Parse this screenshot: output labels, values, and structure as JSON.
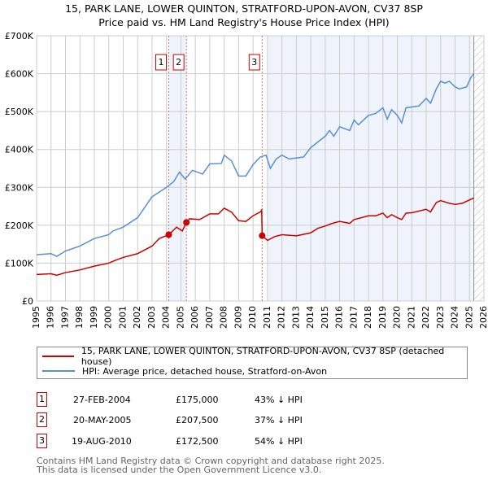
{
  "chart_data": {
    "type": "line",
    "title": "15, PARK LANE, LOWER QUINTON, STRATFORD-UPON-AVON, CV37 8SP",
    "subtitle": "Price paid vs. HM Land Registry's House Price Index (HPI)",
    "xlim": [
      1995,
      2026
    ],
    "ylim": [
      0,
      700000
    ],
    "x_ticks": [
      "1995",
      "1996",
      "1997",
      "1998",
      "1999",
      "2000",
      "2001",
      "2002",
      "2003",
      "2004",
      "2005",
      "2006",
      "2007",
      "2008",
      "2009",
      "2010",
      "2011",
      "2012",
      "2013",
      "2014",
      "2015",
      "2016",
      "2017",
      "2018",
      "2019",
      "2020",
      "2021",
      "2022",
      "2023",
      "2024",
      "2025",
      "2026"
    ],
    "y_ticks": [
      {
        "v": 0,
        "label": "£0"
      },
      {
        "v": 100000,
        "label": "£100K"
      },
      {
        "v": 200000,
        "label": "£200K"
      },
      {
        "v": 300000,
        "label": "£300K"
      },
      {
        "v": 400000,
        "label": "£400K"
      },
      {
        "v": 500000,
        "label": "£500K"
      },
      {
        "v": 600000,
        "label": "£600K"
      },
      {
        "v": 700000,
        "label": "£700K"
      }
    ],
    "grid": true,
    "series": [
      {
        "name": "15, PARK LANE, LOWER QUINTON, STRATFORD-UPON-AVON, CV37 8SP (detached house)",
        "color": "#cc0000",
        "points": [
          [
            1995,
            70
          ],
          [
            1996,
            72
          ],
          [
            1996.4,
            68
          ],
          [
            1997,
            75
          ],
          [
            1998,
            82
          ],
          [
            1999,
            92
          ],
          [
            2000,
            100
          ],
          [
            2000.5,
            108
          ],
          [
            2001,
            115
          ],
          [
            2002,
            125
          ],
          [
            2003,
            145
          ],
          [
            2003.5,
            165
          ],
          [
            2004.16,
            175
          ],
          [
            2004.7,
            195
          ],
          [
            2005.1,
            185
          ],
          [
            2005.38,
            207.5
          ],
          [
            2005.6,
            217
          ],
          [
            2006.3,
            215
          ],
          [
            2007,
            230
          ],
          [
            2007.6,
            230
          ],
          [
            2008,
            245
          ],
          [
            2008.5,
            235
          ],
          [
            2009,
            212
          ],
          [
            2009.5,
            210
          ],
          [
            2010,
            225
          ],
          [
            2010.5,
            235
          ],
          [
            2010.6,
            240
          ],
          [
            2010.63,
            172.5
          ],
          [
            2011,
            160
          ],
          [
            2011.5,
            170
          ],
          [
            2012,
            175
          ],
          [
            2013,
            172
          ],
          [
            2014,
            180
          ],
          [
            2014.5,
            192
          ],
          [
            2015,
            198
          ],
          [
            2015.5,
            205
          ],
          [
            2016,
            210
          ],
          [
            2016.7,
            205
          ],
          [
            2017,
            215
          ],
          [
            2018,
            225
          ],
          [
            2018.5,
            225
          ],
          [
            2019,
            232
          ],
          [
            2019.3,
            220
          ],
          [
            2019.6,
            228
          ],
          [
            2020,
            220
          ],
          [
            2020.3,
            215
          ],
          [
            2020.6,
            232
          ],
          [
            2021,
            233
          ],
          [
            2022,
            242
          ],
          [
            2022.3,
            235
          ],
          [
            2022.7,
            260
          ],
          [
            2023,
            265
          ],
          [
            2023.6,
            258
          ],
          [
            2024,
            255
          ],
          [
            2024.5,
            258
          ],
          [
            2025.3,
            272
          ]
        ]
      },
      {
        "name": "HPI: Average price, detached house, Stratford-on-Avon",
        "color": "#5b8fd0",
        "points": [
          [
            1995,
            122
          ],
          [
            1996,
            125
          ],
          [
            1996.4,
            118
          ],
          [
            1997,
            132
          ],
          [
            1998,
            145
          ],
          [
            1999,
            165
          ],
          [
            2000,
            175
          ],
          [
            2000.3,
            185
          ],
          [
            2001,
            195
          ],
          [
            2002,
            220
          ],
          [
            2003,
            275
          ],
          [
            2004,
            300
          ],
          [
            2004.5,
            315
          ],
          [
            2004.9,
            340
          ],
          [
            2005.3,
            322
          ],
          [
            2005.8,
            345
          ],
          [
            2006.5,
            335
          ],
          [
            2007,
            362
          ],
          [
            2007.8,
            363
          ],
          [
            2008,
            385
          ],
          [
            2008.5,
            370
          ],
          [
            2009,
            330
          ],
          [
            2009.5,
            330
          ],
          [
            2010,
            360
          ],
          [
            2010.5,
            380
          ],
          [
            2010.9,
            385
          ],
          [
            2011.2,
            350
          ],
          [
            2011.6,
            375
          ],
          [
            2012,
            385
          ],
          [
            2012.5,
            375
          ],
          [
            2013.5,
            380
          ],
          [
            2014,
            405
          ],
          [
            2014.5,
            420
          ],
          [
            2015,
            435
          ],
          [
            2015.3,
            450
          ],
          [
            2015.6,
            435
          ],
          [
            2016,
            460
          ],
          [
            2016.7,
            450
          ],
          [
            2017,
            478
          ],
          [
            2017.3,
            465
          ],
          [
            2018,
            490
          ],
          [
            2018.5,
            495
          ],
          [
            2019,
            510
          ],
          [
            2019.3,
            480
          ],
          [
            2019.6,
            505
          ],
          [
            2020,
            490
          ],
          [
            2020.3,
            470
          ],
          [
            2020.6,
            510
          ],
          [
            2021,
            512
          ],
          [
            2021.5,
            515
          ],
          [
            2022,
            535
          ],
          [
            2022.3,
            522
          ],
          [
            2022.7,
            560
          ],
          [
            2023,
            580
          ],
          [
            2023.3,
            575
          ],
          [
            2023.6,
            580
          ],
          [
            2024,
            565
          ],
          [
            2024.3,
            560
          ],
          [
            2024.8,
            565
          ],
          [
            2025.1,
            590
          ],
          [
            2025.3,
            600
          ]
        ]
      }
    ],
    "y_unit": "thousands GBP",
    "sales": [
      {
        "n": "1",
        "x": 2004.16,
        "y": 175
      },
      {
        "n": "2",
        "x": 2005.38,
        "y": 207.5
      },
      {
        "n": "3",
        "x": 2010.63,
        "y": 172.5
      }
    ],
    "shaded": [
      [
        2004.16,
        2005.38
      ],
      [
        2011.0,
        2025.2
      ]
    ],
    "forecast_hatch": [
      2025.3,
      2026
    ],
    "legend_placement": "below"
  },
  "legend": {
    "red": "15, PARK LANE, LOWER QUINTON, STRATFORD-UPON-AVON, CV37 8SP (detached house)",
    "blue": "HPI: Average price, detached house, Stratford-on-Avon"
  },
  "sales_table": [
    {
      "n": "1",
      "date": "27-FEB-2004",
      "price": "£175,000",
      "hpi": "43% ↓ HPI"
    },
    {
      "n": "2",
      "date": "20-MAY-2005",
      "price": "£207,500",
      "hpi": "37% ↓ HPI"
    },
    {
      "n": "3",
      "date": "19-AUG-2010",
      "price": "£172,500",
      "hpi": "54% ↓ HPI"
    }
  ],
  "footer": [
    "Contains HM Land Registry data © Crown copyright and database right 2025.",
    "This data is licensed under the Open Government Licence v3.0."
  ]
}
